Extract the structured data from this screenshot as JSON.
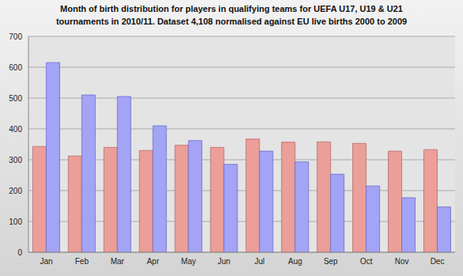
{
  "chart_data": {
    "type": "bar",
    "title": "Month of birth distribution for players in qualifying teams for UEFA U17, U19 & U21\ntournaments in 2010/11. Dataset 4,108 normalised against EU live births 2000 to 2009",
    "categories": [
      "Jan",
      "Feb",
      "Mar",
      "Apr",
      "May",
      "Jun",
      "Jul",
      "Aug",
      "Sep",
      "Oct",
      "Nov",
      "Dec"
    ],
    "series": [
      {
        "color": "#eb9f98",
        "values": [
          343,
          312,
          340,
          330,
          347,
          340,
          367,
          357,
          358,
          353,
          328,
          333
        ]
      },
      {
        "color": "#a4a4f6",
        "values": [
          615,
          510,
          505,
          410,
          362,
          285,
          328,
          293,
          253,
          215,
          177,
          147
        ]
      }
    ],
    "ylim": [
      0,
      700
    ],
    "yticks": [
      0,
      100,
      200,
      300,
      400,
      500,
      600,
      700
    ],
    "grid": true
  }
}
